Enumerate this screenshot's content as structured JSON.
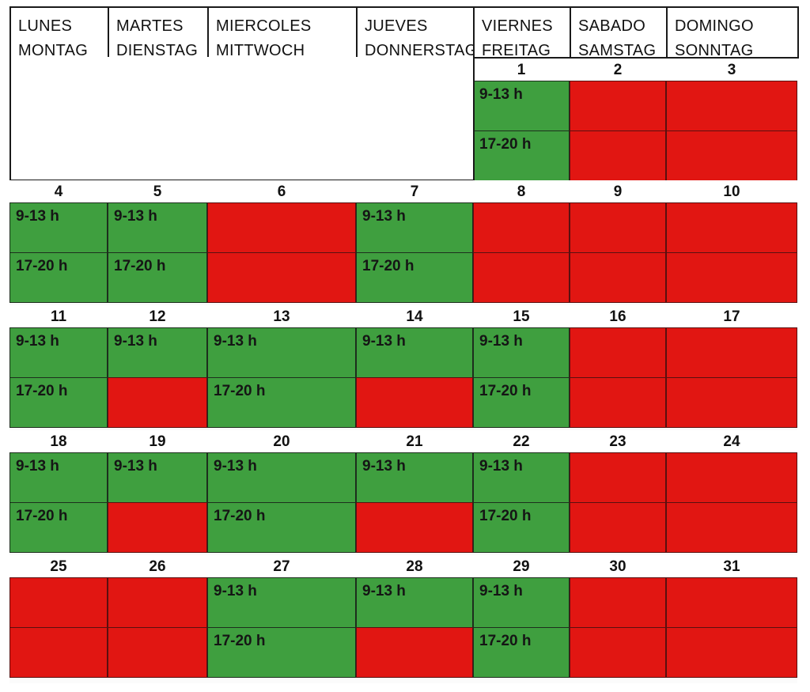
{
  "headers": [
    {
      "es": "LUNES",
      "de": "MONTAG"
    },
    {
      "es": "MARTES",
      "de": "DIENSTAG"
    },
    {
      "es": "MIERCOLES",
      "de": "MITTWOCH"
    },
    {
      "es": "JUEVES",
      "de": "DONNERSTAG"
    },
    {
      "es": "VIERNES",
      "de": "FREITAG"
    },
    {
      "es": "SABADO",
      "de": "SAMSTAG"
    },
    {
      "es": "DOMINGO",
      "de": "SONNTAG"
    }
  ],
  "slot_labels": {
    "morning": "9-13 h",
    "evening": "17-20 h"
  },
  "colors": {
    "available": "#3f9f3f",
    "unavailable": "#e11612"
  },
  "weeks": [
    [
      null,
      null,
      null,
      null,
      {
        "day": "1",
        "morning": true,
        "evening": true
      },
      {
        "day": "2",
        "morning": false,
        "evening": false
      },
      {
        "day": "3",
        "morning": false,
        "evening": false
      }
    ],
    [
      {
        "day": "4",
        "morning": true,
        "evening": true
      },
      {
        "day": "5",
        "morning": true,
        "evening": true
      },
      {
        "day": "6",
        "morning": false,
        "evening": false
      },
      {
        "day": "7",
        "morning": true,
        "evening": true
      },
      {
        "day": "8",
        "morning": false,
        "evening": false
      },
      {
        "day": "9",
        "morning": false,
        "evening": false
      },
      {
        "day": "10",
        "morning": false,
        "evening": false
      }
    ],
    [
      {
        "day": "11",
        "morning": true,
        "evening": true
      },
      {
        "day": "12",
        "morning": true,
        "evening": false
      },
      {
        "day": "13",
        "morning": true,
        "evening": true
      },
      {
        "day": "14",
        "morning": true,
        "evening": false
      },
      {
        "day": "15",
        "morning": true,
        "evening": true
      },
      {
        "day": "16",
        "morning": false,
        "evening": false
      },
      {
        "day": "17",
        "morning": false,
        "evening": false
      }
    ],
    [
      {
        "day": "18",
        "morning": true,
        "evening": true
      },
      {
        "day": "19",
        "morning": true,
        "evening": false
      },
      {
        "day": "20",
        "morning": true,
        "evening": true
      },
      {
        "day": "21",
        "morning": true,
        "evening": false
      },
      {
        "day": "22",
        "morning": true,
        "evening": true
      },
      {
        "day": "23",
        "morning": false,
        "evening": false
      },
      {
        "day": "24",
        "morning": false,
        "evening": false
      }
    ],
    [
      {
        "day": "25",
        "morning": false,
        "evening": false
      },
      {
        "day": "26",
        "morning": false,
        "evening": false
      },
      {
        "day": "27",
        "morning": true,
        "evening": true
      },
      {
        "day": "28",
        "morning": true,
        "evening": false
      },
      {
        "day": "29",
        "morning": true,
        "evening": true
      },
      {
        "day": "30",
        "morning": false,
        "evening": false
      },
      {
        "day": "31",
        "morning": false,
        "evening": false
      }
    ]
  ]
}
